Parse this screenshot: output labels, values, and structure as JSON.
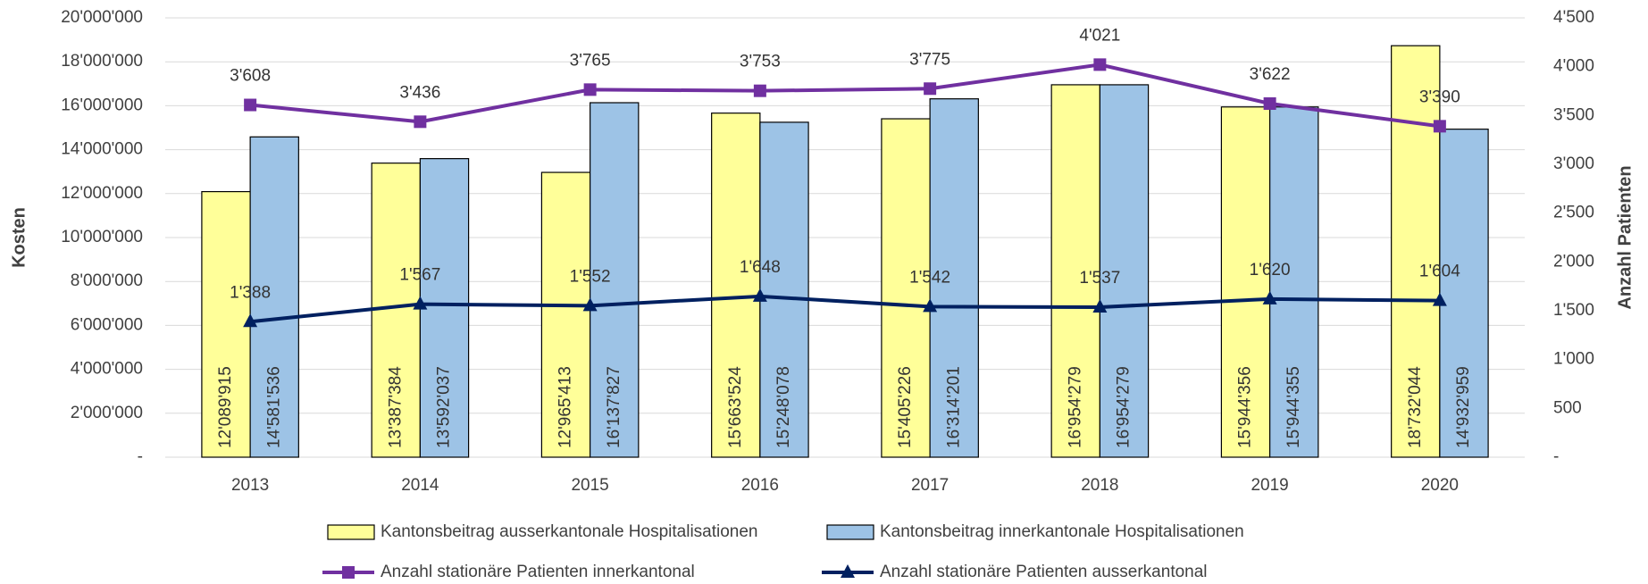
{
  "chart_data": {
    "type": "bar",
    "y_label": "Kosten",
    "y2_label": "Anzahl Patienten",
    "categories": [
      "2013",
      "2014",
      "2015",
      "2016",
      "2017",
      "2018",
      "2019",
      "2020"
    ],
    "series": [
      {
        "name": "Kantonsbeitrag ausserkantonale Hospitalisationen",
        "type": "bar",
        "color": "#ffff99",
        "values": [
          12089915,
          13387384,
          12965413,
          15663524,
          15405226,
          16954279,
          15944356,
          18732044
        ],
        "value_labels": [
          "12'089'915",
          "13'387'384",
          "12'965'413",
          "15'663'524",
          "15'405'226",
          "16'954'279",
          "15'944'356",
          "18'732'044"
        ]
      },
      {
        "name": "Kantonsbeitrag innerkantonale Hospitalisationen",
        "type": "bar",
        "color": "#9dc3e6",
        "values": [
          14581536,
          13592037,
          16137827,
          15248078,
          16314201,
          16954279,
          15944355,
          14932959
        ],
        "value_labels": [
          "14'581'536",
          "13'592'037",
          "16'137'827",
          "15'248'078",
          "16'314'201",
          "16'954'279",
          "15'944'355",
          "14'932'959"
        ]
      },
      {
        "name": "Anzahl stationäre Patienten innerkantonal",
        "type": "line",
        "axis": "y2",
        "color": "#7030a0",
        "marker": "square",
        "values": [
          3608,
          3436,
          3765,
          3753,
          3775,
          4021,
          3622,
          3390
        ],
        "value_labels": [
          "3'608",
          "3'436",
          "3'765",
          "3'753",
          "3'775",
          "4'021",
          "3'622",
          "3'390"
        ]
      },
      {
        "name": "Anzahl stationäre Patienten ausserkantonal",
        "type": "line",
        "axis": "y2",
        "color": "#002060",
        "marker": "triangle",
        "values": [
          1388,
          1567,
          1552,
          1648,
          1542,
          1537,
          1620,
          1604
        ],
        "value_labels": [
          "1'388",
          "1'567",
          "1'552",
          "1'648",
          "1'542",
          "1'537",
          "1'620",
          "1'604"
        ]
      }
    ],
    "ylim": [
      0,
      20000000
    ],
    "yticks": [
      {
        "value": 0,
        "label": "-"
      },
      {
        "value": 2000000,
        "label": "2'000'000"
      },
      {
        "value": 4000000,
        "label": "4'000'000"
      },
      {
        "value": 6000000,
        "label": "6'000'000"
      },
      {
        "value": 8000000,
        "label": "8'000'000"
      },
      {
        "value": 10000000,
        "label": "10'000'000"
      },
      {
        "value": 12000000,
        "label": "12'000'000"
      },
      {
        "value": 14000000,
        "label": "14'000'000"
      },
      {
        "value": 16000000,
        "label": "16'000'000"
      },
      {
        "value": 18000000,
        "label": "18'000'000"
      },
      {
        "value": 20000000,
        "label": "20'000'000"
      }
    ],
    "y2lim": [
      0,
      4500
    ],
    "y2ticks": [
      {
        "value": 0,
        "label": "-"
      },
      500,
      {
        "value": 1000,
        "label": "1'000"
      },
      {
        "value": 1500,
        "label": "1'500"
      },
      {
        "value": 2000,
        "label": "2'000"
      },
      {
        "value": 2500,
        "label": "2'500"
      },
      {
        "value": 3000,
        "label": "3'000"
      },
      {
        "value": 3500,
        "label": "3'500"
      },
      {
        "value": 4000,
        "label": "4'000"
      },
      {
        "value": 4500,
        "label": "4'500"
      }
    ],
    "grid": true
  }
}
